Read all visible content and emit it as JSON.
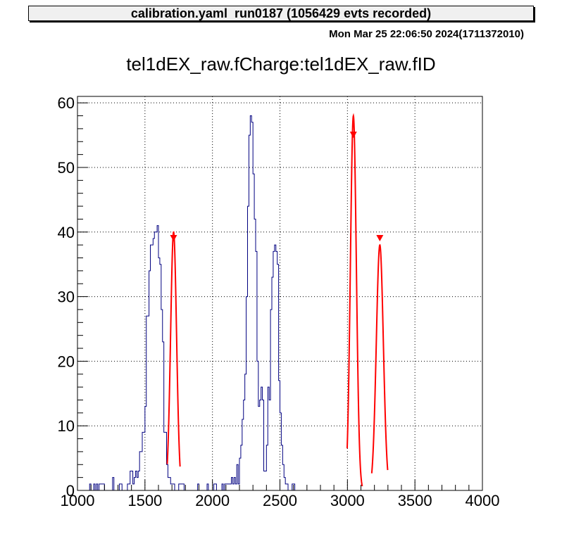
{
  "header": {
    "stat_box": "calibration.yaml  run0187 (1056429 evts recorded)",
    "timestamp": "Mon Mar 25 22:06:50 2024(1711372010)"
  },
  "colors": {
    "histogram": "#000080",
    "fit": "#ff0000",
    "marker": "#ff0000",
    "grid": "#000000"
  },
  "chart_data": {
    "type": "histogram",
    "title": "tel1dEX_raw.fCharge:tel1dEX_raw.fID",
    "xlabel": "",
    "ylabel": "",
    "xlim": [
      1000,
      4000
    ],
    "ylim": [
      0,
      61
    ],
    "grid": true,
    "legend": "none",
    "x_ticks": [
      1000,
      1500,
      2000,
      2500,
      3000,
      3500,
      4000
    ],
    "y_ticks": [
      0,
      10,
      20,
      30,
      40,
      50,
      60
    ],
    "bin_start": 1090,
    "bin_width": 10,
    "histogram_counts": [
      1,
      0,
      0,
      1,
      0,
      1,
      0,
      1,
      1,
      1,
      1,
      0,
      0,
      0,
      0,
      0,
      0,
      2,
      0,
      0,
      0,
      0,
      1,
      1,
      0,
      0,
      0,
      0,
      1,
      1,
      3,
      3,
      1,
      2,
      3,
      2,
      3,
      6,
      6,
      9,
      9,
      13,
      27,
      27,
      34,
      38,
      38,
      39,
      40,
      40,
      41,
      36,
      35,
      28,
      23,
      9,
      9,
      4,
      2,
      2,
      1,
      1,
      1,
      0,
      0,
      0,
      1,
      1,
      1,
      1,
      0,
      0,
      0,
      0,
      0,
      0,
      0,
      0,
      0,
      0,
      1,
      0,
      0,
      0,
      0,
      0,
      0,
      1,
      0,
      0,
      0,
      0,
      1,
      1,
      0,
      0,
      0,
      0,
      1,
      0,
      1,
      1,
      1,
      1,
      1,
      2,
      1,
      2,
      1,
      4,
      1,
      5,
      7,
      11,
      14,
      18,
      30,
      44,
      55,
      58,
      57,
      49,
      42,
      37,
      20,
      13,
      14,
      16,
      14,
      3,
      3,
      7,
      16,
      14,
      28,
      33,
      37,
      38,
      37,
      35,
      17,
      12,
      7,
      4,
      2,
      1,
      1,
      0,
      0,
      0,
      1,
      1,
      0,
      0,
      0
    ],
    "fits": [
      {
        "mean": 1712,
        "sigma": 22,
        "amplitude": 40,
        "range": [
          1665,
          1760
        ]
      },
      {
        "mean": 3044,
        "sigma": 22,
        "amplitude": 58,
        "range": [
          2998,
          3110
        ]
      },
      {
        "mean": 3240,
        "sigma": 26,
        "amplitude": 38,
        "range": [
          3180,
          3298
        ]
      }
    ],
    "peak_markers": [
      {
        "x": 1712,
        "y": 39
      },
      {
        "x": 3044,
        "y": 55
      },
      {
        "x": 3240,
        "y": 39
      }
    ]
  }
}
